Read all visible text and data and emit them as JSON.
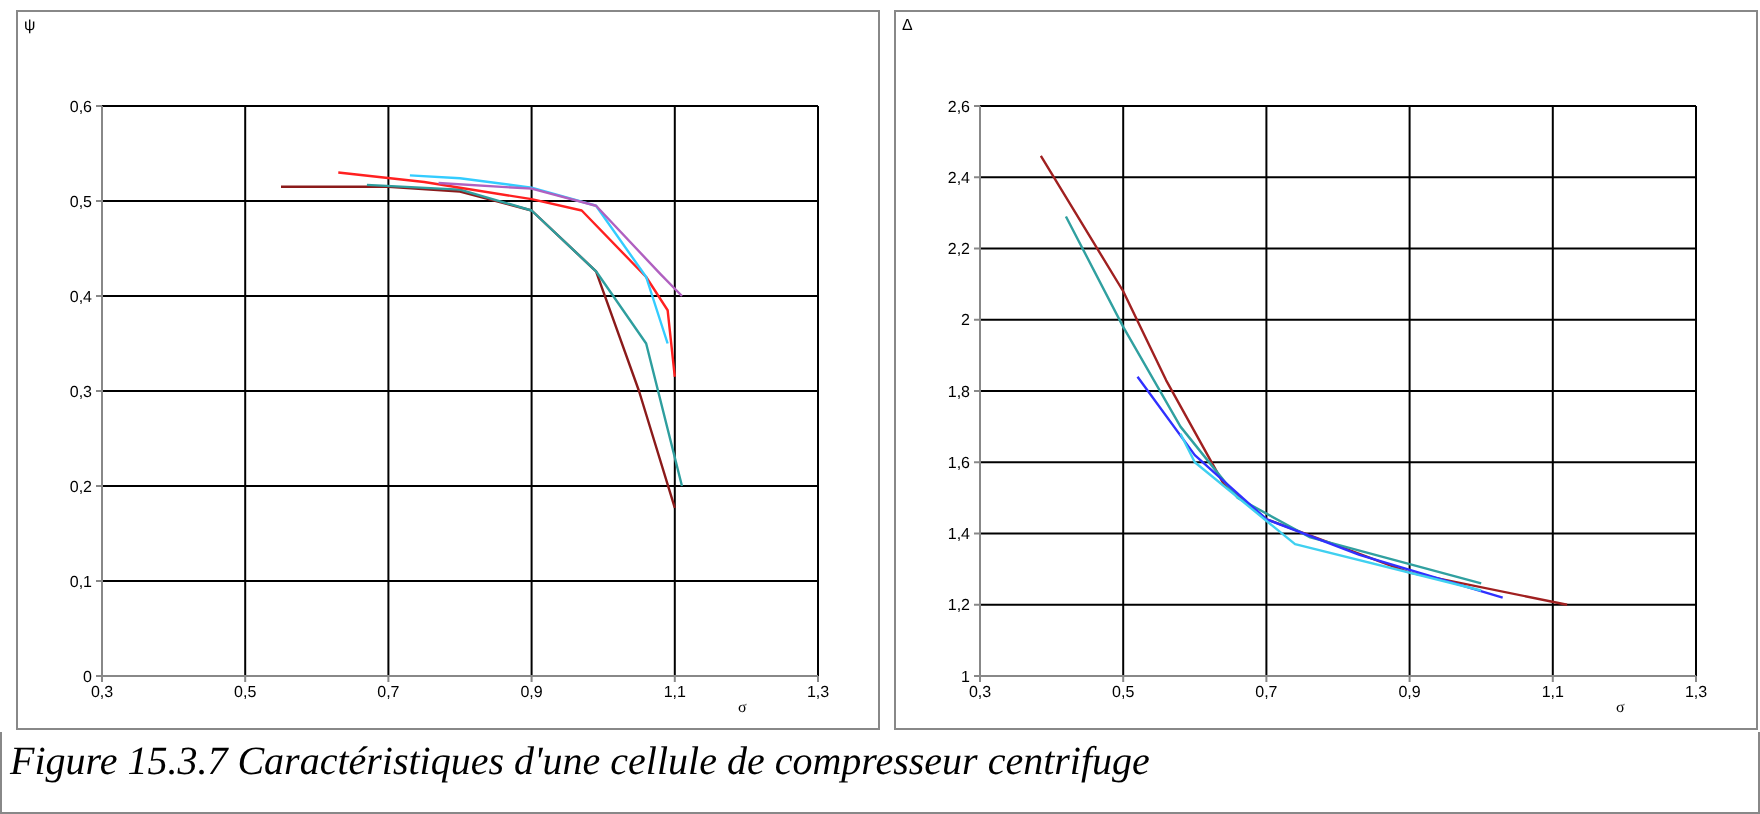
{
  "chart_data": [
    {
      "type": "line",
      "ylabel": "ψ",
      "xlabel": "σ",
      "xlim": [
        0.3,
        1.3
      ],
      "ylim": [
        0,
        0.6
      ],
      "xticks": [
        {
          "value": 0.3,
          "label": "0,3"
        },
        {
          "value": 0.5,
          "label": "0,5"
        },
        {
          "value": 0.7,
          "label": "0,7"
        },
        {
          "value": 0.9,
          "label": "0,9"
        },
        {
          "value": 1.1,
          "label": "1,1"
        },
        {
          "value": 1.3,
          "label": "1,3"
        }
      ],
      "yticks": [
        0,
        {
          "value": 0.1,
          "label": "0,1"
        },
        {
          "value": 0.2,
          "label": "0,2"
        },
        {
          "value": 0.3,
          "label": "0,3"
        },
        {
          "value": 0.4,
          "label": "0,4"
        },
        {
          "value": 0.5,
          "label": "0,5"
        },
        {
          "value": 0.6,
          "label": "0,6"
        }
      ],
      "grid": true,
      "annotations": [
        "Figure 15.3.7 Caractéristiques d'une cellule de compresseur centrifuge"
      ],
      "series": [
        {
          "color": "#8b1a1a",
          "x": [
            0.55,
            0.7,
            0.8,
            0.9,
            0.99,
            1.05,
            1.1
          ],
          "values": [
            0.515,
            0.515,
            0.51,
            0.49,
            0.426,
            0.3,
            0.177
          ]
        },
        {
          "color": "#2e9e9e",
          "x": [
            0.67,
            0.8,
            0.9,
            0.99,
            1.06,
            1.09,
            1.11
          ],
          "values": [
            0.517,
            0.512,
            0.49,
            0.426,
            0.35,
            0.26,
            0.2
          ]
        },
        {
          "color": "#ff2020",
          "x": [
            0.63,
            0.75,
            0.9,
            0.97,
            1.06,
            1.09,
            1.1
          ],
          "values": [
            0.53,
            0.52,
            0.502,
            0.49,
            0.42,
            0.385,
            0.315
          ]
        },
        {
          "color": "#33ccff",
          "x": [
            0.73,
            0.8,
            0.9,
            0.99,
            1.06,
            1.09
          ],
          "values": [
            0.527,
            0.524,
            0.514,
            0.495,
            0.42,
            0.35
          ]
        },
        {
          "color": "#b060c0",
          "x": [
            0.77,
            0.9,
            0.99,
            1.08,
            1.11
          ],
          "values": [
            0.519,
            0.513,
            0.495,
            0.423,
            0.4
          ]
        }
      ]
    },
    {
      "type": "line",
      "ylabel": "Δ",
      "xlabel": "σ",
      "xlim": [
        0.3,
        1.3
      ],
      "ylim": [
        1,
        2.6
      ],
      "xticks": [
        {
          "value": 0.3,
          "label": "0,3"
        },
        {
          "value": 0.5,
          "label": "0,5"
        },
        {
          "value": 0.7,
          "label": "0,7"
        },
        {
          "value": 0.9,
          "label": "0,9"
        },
        {
          "value": 1.1,
          "label": "1,1"
        },
        {
          "value": 1.3,
          "label": "1,3"
        }
      ],
      "yticks": [
        1,
        {
          "value": 1.2,
          "label": "1,2"
        },
        {
          "value": 1.4,
          "label": "1,4"
        },
        {
          "value": 1.6,
          "label": "1,6"
        },
        {
          "value": 1.8,
          "label": "1,8"
        },
        2,
        {
          "value": 2.2,
          "label": "2,2"
        },
        {
          "value": 2.4,
          "label": "2,4"
        },
        {
          "value": 2.6,
          "label": "2,6"
        }
      ],
      "grid": true,
      "series": [
        {
          "color": "#a02020",
          "x": [
            0.385,
            0.5,
            0.56,
            0.64,
            0.7,
            0.9,
            1.12
          ],
          "values": [
            2.46,
            2.08,
            1.83,
            1.54,
            1.44,
            1.29,
            1.2
          ]
        },
        {
          "color": "#30a0a0",
          "x": [
            0.42,
            0.5,
            0.58,
            0.66,
            0.76,
            1.0
          ],
          "values": [
            2.29,
            1.98,
            1.7,
            1.5,
            1.39,
            1.26
          ]
        },
        {
          "color": "#3030ff",
          "x": [
            0.52,
            0.6,
            0.7,
            0.83,
            1.03
          ],
          "values": [
            1.84,
            1.62,
            1.44,
            1.34,
            1.22
          ]
        },
        {
          "color": "#40d0f0",
          "x": [
            0.58,
            0.6,
            0.74,
            1.0
          ],
          "values": [
            1.68,
            1.6,
            1.37,
            1.24
          ]
        }
      ]
    }
  ]
}
